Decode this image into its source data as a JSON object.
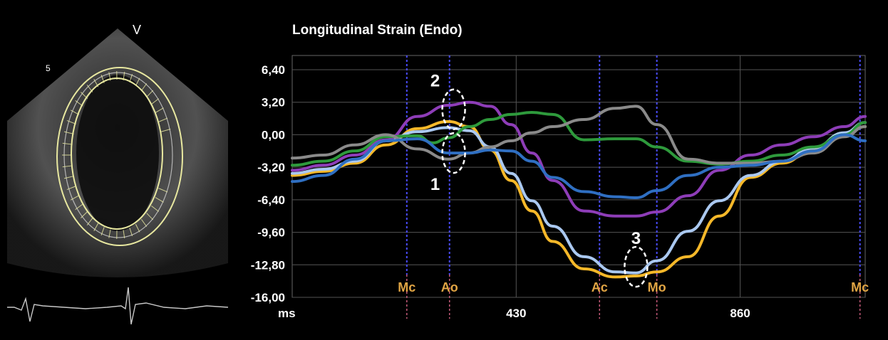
{
  "echo": {
    "marker_label": "V",
    "depth_label": "5"
  },
  "chart_data": {
    "type": "line",
    "title": "Longitudinal Strain (Endo)",
    "xlabel": "ms",
    "ylabel": "",
    "ylim": [
      -16,
      7.8
    ],
    "xlim": [
      0,
      1100
    ],
    "grid": true,
    "y_ticks": [
      6.4,
      3.2,
      0,
      -3.2,
      -6.4,
      -9.6,
      -12.8,
      -16
    ],
    "y_tick_labels": [
      "6,40",
      "3,20",
      "0,00",
      "-3,20",
      "-6,40",
      "-9,60",
      "-12,80",
      "-16,00"
    ],
    "x_ticks": [
      430,
      860
    ],
    "x_tick_labels": [
      "430",
      "860"
    ],
    "events": [
      {
        "label": "Mc",
        "x": 220
      },
      {
        "label": "Ao",
        "x": 302
      },
      {
        "label": "Ac",
        "x": 590
      },
      {
        "label": "Mo",
        "x": 700
      },
      {
        "label": "Mc",
        "x": 1090
      }
    ],
    "annotations": [
      {
        "label": "2",
        "x": 310,
        "y": 2.5
      },
      {
        "label": "1",
        "x": 310,
        "y": -1.8
      },
      {
        "label": "3",
        "x": 660,
        "y": -13
      }
    ],
    "series": [
      {
        "color": "#f5b829",
        "x": [
          0,
          60,
          120,
          180,
          240,
          300,
          340,
          380,
          420,
          460,
          500,
          560,
          620,
          660,
          700,
          760,
          820,
          880,
          940,
          1000,
          1060,
          1100
        ],
        "values": [
          -4.0,
          -3.6,
          -2.8,
          -1.0,
          0.6,
          1.3,
          0.8,
          -1.5,
          -4.5,
          -7.5,
          -10.5,
          -13.2,
          -14.0,
          -13.9,
          -13.5,
          -12.0,
          -8.0,
          -4.2,
          -2.8,
          -1.5,
          0.0,
          0.8
        ]
      },
      {
        "color": "#aac8f0",
        "x": [
          0,
          60,
          120,
          180,
          240,
          300,
          340,
          380,
          420,
          460,
          500,
          560,
          620,
          660,
          700,
          760,
          820,
          880,
          940,
          1000,
          1060,
          1100
        ],
        "values": [
          -3.8,
          -3.4,
          -2.6,
          -0.6,
          0.3,
          0.7,
          0.4,
          -1.2,
          -3.8,
          -6.5,
          -9.0,
          -12.0,
          -13.5,
          -13.6,
          -12.4,
          -9.5,
          -6.5,
          -4.0,
          -2.6,
          -1.3,
          0.2,
          1.2
        ]
      },
      {
        "color": "#8e3db8",
        "x": [
          0,
          60,
          120,
          180,
          240,
          300,
          340,
          380,
          420,
          460,
          500,
          560,
          620,
          660,
          700,
          760,
          820,
          880,
          940,
          1000,
          1060,
          1100
        ],
        "values": [
          -3.5,
          -3.0,
          -2.0,
          -0.5,
          1.8,
          2.9,
          3.2,
          2.8,
          1.0,
          -1.8,
          -4.5,
          -7.5,
          -8.0,
          -8.0,
          -7.6,
          -6.0,
          -3.5,
          -2.0,
          -1.0,
          -0.2,
          0.8,
          1.8
        ]
      },
      {
        "color": "#2e9a3c",
        "x": [
          0,
          60,
          120,
          180,
          240,
          270,
          300,
          340,
          380,
          420,
          460,
          500,
          560,
          620,
          660,
          700,
          760,
          820,
          880,
          940,
          1000,
          1060,
          1100
        ],
        "values": [
          -3.0,
          -2.6,
          -1.6,
          -0.2,
          -0.1,
          -0.8,
          -0.3,
          0.8,
          1.5,
          2.0,
          2.2,
          2.0,
          -0.5,
          -0.4,
          -0.4,
          -1.2,
          -2.6,
          -2.9,
          -2.6,
          -2.0,
          -1.2,
          0.0,
          1.2
        ]
      },
      {
        "color": "#8a8a8a",
        "x": [
          0,
          60,
          120,
          180,
          240,
          300,
          340,
          380,
          420,
          460,
          500,
          560,
          620,
          660,
          700,
          760,
          820,
          880,
          940,
          1000,
          1060,
          1100
        ],
        "values": [
          -2.3,
          -2.0,
          -1.0,
          0.0,
          -1.4,
          -2.4,
          -1.8,
          -1.2,
          -0.6,
          0.2,
          0.8,
          1.5,
          2.6,
          2.8,
          1.0,
          -2.4,
          -2.8,
          -2.8,
          -2.6,
          -1.8,
          -0.2,
          0.8
        ]
      },
      {
        "color": "#2f6fc2",
        "x": [
          0,
          60,
          120,
          180,
          240,
          300,
          340,
          380,
          420,
          460,
          500,
          560,
          620,
          660,
          700,
          760,
          820,
          880,
          940,
          1000,
          1060,
          1100
        ],
        "values": [
          -4.6,
          -4.0,
          -2.4,
          -0.6,
          -0.4,
          -1.8,
          -1.8,
          -1.5,
          -1.6,
          -2.6,
          -4.2,
          -5.6,
          -6.1,
          -6.2,
          -5.5,
          -4.0,
          -3.2,
          -3.0,
          -2.6,
          -1.6,
          0.0,
          -0.6
        ]
      }
    ]
  }
}
